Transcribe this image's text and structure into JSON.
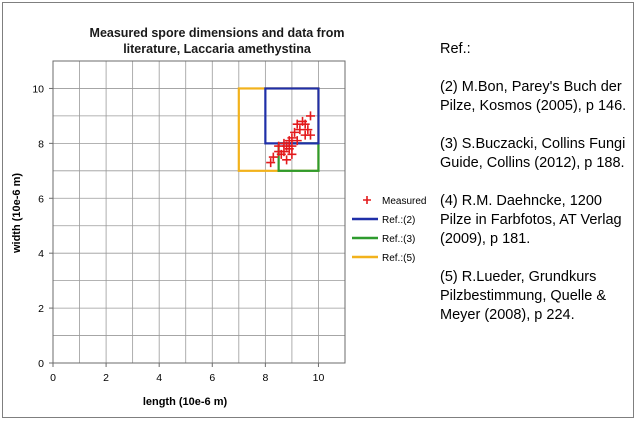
{
  "chart_data": {
    "type": "scatter",
    "title": "Measured spore dimensions and data from literature, Laccaria amethystina",
    "title_lines": [
      "Measured spore dimensions and data from",
      "literature, Laccaria amethystina"
    ],
    "xlabel": "length (10e-6 m)",
    "ylabel": "width (10e-6 m)",
    "xlim": [
      0,
      11
    ],
    "ylim": [
      0,
      11
    ],
    "x_ticks": [
      0,
      2,
      4,
      6,
      8,
      10
    ],
    "y_ticks": [
      0,
      2,
      4,
      6,
      8,
      10
    ],
    "grid": true,
    "legend_position": "right",
    "series": [
      {
        "name": "Measured",
        "kind": "points",
        "marker": "plus",
        "color": "#e31a1c",
        "points": [
          [
            9.7,
            9.0
          ],
          [
            9.4,
            8.8
          ],
          [
            9.5,
            8.7
          ],
          [
            9.2,
            8.7
          ],
          [
            9.3,
            8.5
          ],
          [
            9.6,
            8.5
          ],
          [
            9.1,
            8.4
          ],
          [
            9.5,
            8.3
          ],
          [
            9.7,
            8.3
          ],
          [
            9.0,
            8.2
          ],
          [
            9.2,
            8.1
          ],
          [
            8.9,
            8.1
          ],
          [
            8.7,
            8.0
          ],
          [
            9.0,
            7.9
          ],
          [
            8.8,
            7.9
          ],
          [
            8.5,
            7.9
          ],
          [
            8.9,
            7.8
          ],
          [
            8.7,
            7.7
          ],
          [
            8.5,
            7.7
          ],
          [
            9.0,
            7.6
          ],
          [
            8.6,
            7.6
          ],
          [
            8.3,
            7.5
          ],
          [
            8.8,
            7.4
          ],
          [
            8.2,
            7.3
          ]
        ]
      },
      {
        "name": "Ref.:(2)",
        "kind": "range",
        "color": "#1f2fa8",
        "x": [
          8,
          10
        ],
        "y": [
          8,
          10
        ]
      },
      {
        "name": "Ref.:(3)",
        "kind": "range",
        "color": "#2e9b2e",
        "x": [
          8.5,
          10
        ],
        "y": [
          7,
          8
        ]
      },
      {
        "name": "Ref.:(5)",
        "kind": "range",
        "color": "#f2b21c",
        "x": [
          7,
          10
        ],
        "y": [
          7,
          10
        ]
      }
    ]
  },
  "references": {
    "heading": "Ref.:",
    "entries": [
      "(2) M.Bon, Parey's Buch der Pilze, Kosmos (2005), p 146.",
      "(3) S.Buczacki, Collins Fungi Guide, Collins (2012), p 188.",
      "(4) R.M. Daehncke, 1200 Pilze in Farbfotos, AT Verlag (2009), p 181.",
      "(5) R.Lueder, Grundkurs Pilzbestimmung, Quelle & Meyer (2008), p 224."
    ]
  }
}
